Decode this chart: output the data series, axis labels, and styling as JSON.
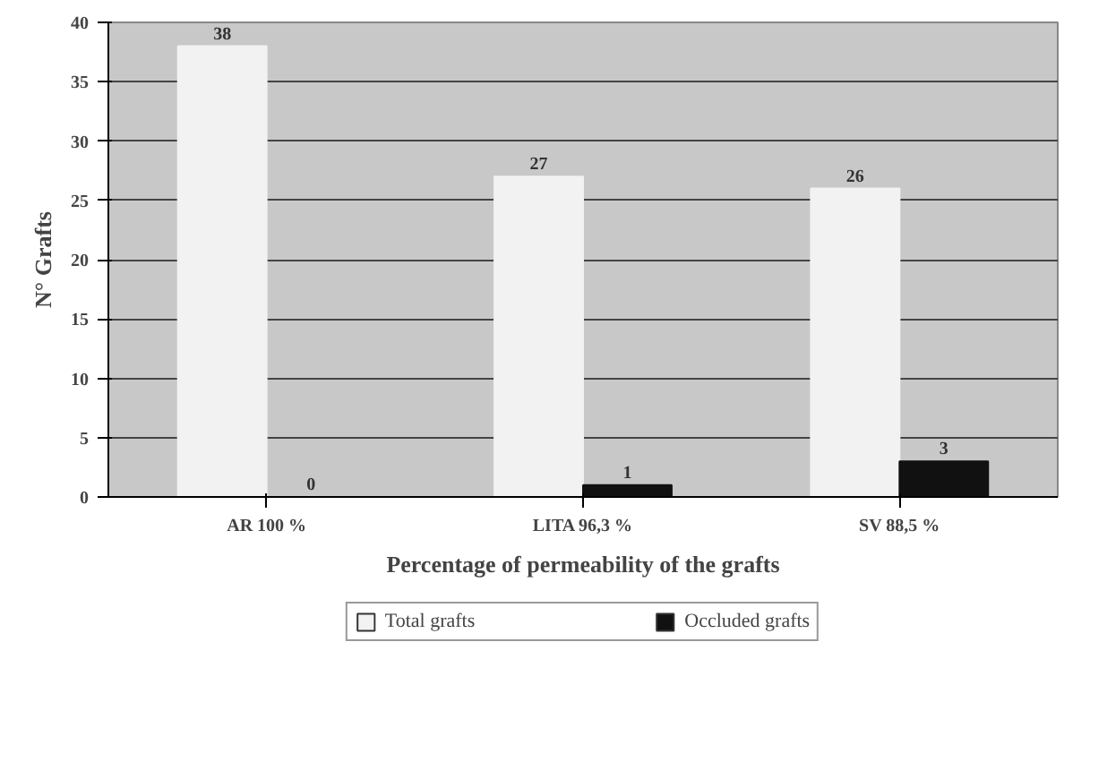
{
  "chart_data": {
    "type": "bar",
    "xlabel": "Percentage of permeability of the grafts",
    "ylabel": "N° Grafts",
    "categories": [
      "AR 100 %",
      "LITA 96,3 %",
      "SV 88,5 %"
    ],
    "series": [
      {
        "name": "Total grafts",
        "color": "#f2f2f2",
        "values": [
          38,
          27,
          26
        ]
      },
      {
        "name": "Occluded grafts",
        "color": "#111111",
        "values": [
          0,
          1,
          3
        ]
      }
    ],
    "ylim": [
      0,
      40
    ],
    "yticks": [
      0,
      5,
      10,
      15,
      20,
      25,
      30,
      35,
      40
    ],
    "grid": "y",
    "legend": "bottom",
    "data_labels": true
  }
}
